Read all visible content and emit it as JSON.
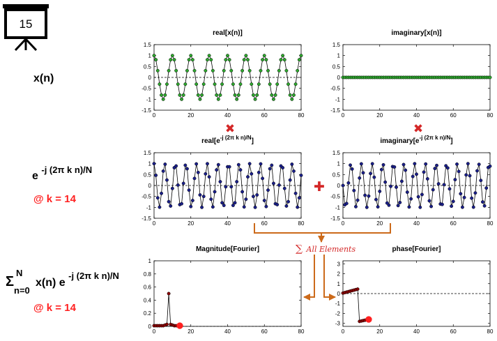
{
  "slide_number": "15",
  "rows": {
    "row1": {
      "label": "x(n)"
    },
    "row2": {
      "label_base": "e",
      "label_exp": "-j (2π k n)/N",
      "k_label": "@ k = 14"
    },
    "row3": {
      "sigma": "Σ",
      "sigma_top": "N",
      "sigma_bottom": "n=0",
      "expr_base": "x(n) e",
      "expr_exp": "-j (2π k n)/N",
      "k_label": "@ k = 14"
    }
  },
  "operators": {
    "multiply": "✖",
    "add": "✚"
  },
  "sum_label": {
    "sigma": "∑",
    "text": "All Elements"
  },
  "colors": {
    "green": "#2ea82e",
    "navy": "#1a1f8a",
    "darkred": "#8b0000",
    "red": "#ff2020",
    "orange": "#cc6a1a",
    "operator_red": "#d42828"
  },
  "chart_data": [
    {
      "id": "real_x",
      "type": "line",
      "title": "real[x(n)]",
      "xlim": [
        0,
        80
      ],
      "ylim": [
        -1.5,
        1.5
      ],
      "xticks": [
        0,
        20,
        40,
        60,
        80
      ],
      "yticks": [
        1.5,
        1,
        0.5,
        0,
        -0.5,
        -1,
        -1.5
      ],
      "ytick_labels": [
        "1.5",
        "1",
        "0.5",
        "0",
        "-0.5",
        "-1",
        "-1.5"
      ],
      "n_points": 81,
      "frequency": 0.1,
      "amplitude": 1,
      "point_color": "green"
    },
    {
      "id": "imag_x",
      "type": "line",
      "title": "imaginary[x(n)]",
      "xlim": [
        0,
        80
      ],
      "ylim": [
        -1.5,
        1.5
      ],
      "xticks": [
        0,
        20,
        40,
        60,
        80
      ],
      "yticks": [
        1.5,
        1,
        0.5,
        0,
        -0.5,
        -1,
        -1.5
      ],
      "ytick_labels": [
        "1.5",
        "1",
        "0.5",
        "0",
        "-0.5",
        "-1",
        "-1.5"
      ],
      "n_points": 81,
      "frequency": 0,
      "amplitude": 0,
      "point_color": "green"
    },
    {
      "id": "real_e",
      "type": "line",
      "title_base": "real[e",
      "title_exp": "-j (2π k n)/N",
      "title_close": "]",
      "xlim": [
        0,
        80
      ],
      "ylim": [
        -1.5,
        1.5
      ],
      "xticks": [
        0,
        20,
        40,
        60,
        80
      ],
      "yticks": [
        1.5,
        1,
        0.5,
        0,
        -0.5,
        -1,
        -1.5
      ],
      "ytick_labels": [
        "1.5",
        "1",
        "0.5",
        "0",
        "-0.5",
        "-1",
        "-1.5"
      ],
      "n_points": 81,
      "k": 14,
      "N": 81,
      "point_color": "navy"
    },
    {
      "id": "imag_e",
      "type": "line",
      "title_base": "imaginary[e",
      "title_exp": "-j (2π k n)/N",
      "title_close": "]",
      "xlim": [
        0,
        80
      ],
      "ylim": [
        -1.5,
        1.5
      ],
      "xticks": [
        0,
        20,
        40,
        60,
        80
      ],
      "yticks": [
        1.5,
        1,
        0.5,
        0,
        -0.5,
        -1,
        -1.5
      ],
      "ytick_labels": [
        "1.5",
        "1",
        "0.5",
        "0",
        "-0.5",
        "-1",
        "-1.5"
      ],
      "n_points": 81,
      "k": 14,
      "N": 81,
      "point_color": "navy"
    },
    {
      "id": "magnitude",
      "type": "line",
      "title": "Magnitude[Fourier]",
      "xlim": [
        0,
        80
      ],
      "ylim": [
        0,
        1
      ],
      "xticks": [
        0,
        20,
        40,
        60,
        80
      ],
      "yticks": [
        1,
        0.8,
        0.6,
        0.4,
        0.2,
        0
      ],
      "ytick_labels": [
        "1",
        "0.8",
        "0.6",
        "0.4",
        "0.2",
        "0"
      ],
      "x": [
        0,
        1,
        2,
        3,
        4,
        5,
        6,
        7,
        8,
        9,
        10,
        11,
        12,
        13,
        14
      ],
      "y": [
        0.01,
        0.01,
        0.01,
        0.01,
        0.01,
        0.01,
        0.02,
        0.03,
        0.5,
        0.03,
        0.02,
        0.01,
        0.01,
        0.01,
        0.01
      ],
      "current_k": 14,
      "current_value": 0.01,
      "point_color": "darkred",
      "highlight_color": "red"
    },
    {
      "id": "phase",
      "type": "line",
      "title": "phase[Fourier]",
      "xlim": [
        0,
        80
      ],
      "ylim": [
        -3.3,
        3.3
      ],
      "xticks": [
        0,
        20,
        40,
        60,
        80
      ],
      "yticks": [
        3,
        2,
        1,
        0,
        -1,
        -2,
        -3
      ],
      "ytick_labels": [
        "3",
        "2",
        "1",
        "0",
        "-1",
        "-2",
        "-3"
      ],
      "x": [
        0,
        1,
        2,
        3,
        4,
        5,
        6,
        7,
        8,
        9,
        10,
        11,
        12,
        13,
        14
      ],
      "y": [
        0.05,
        0.1,
        0.15,
        0.2,
        0.25,
        0.3,
        0.35,
        0.4,
        0.45,
        -2.8,
        -2.76,
        -2.72,
        -2.68,
        -2.64,
        -2.6
      ],
      "current_k": 14,
      "current_value": -2.6,
      "point_color": "darkred",
      "highlight_color": "red"
    }
  ]
}
